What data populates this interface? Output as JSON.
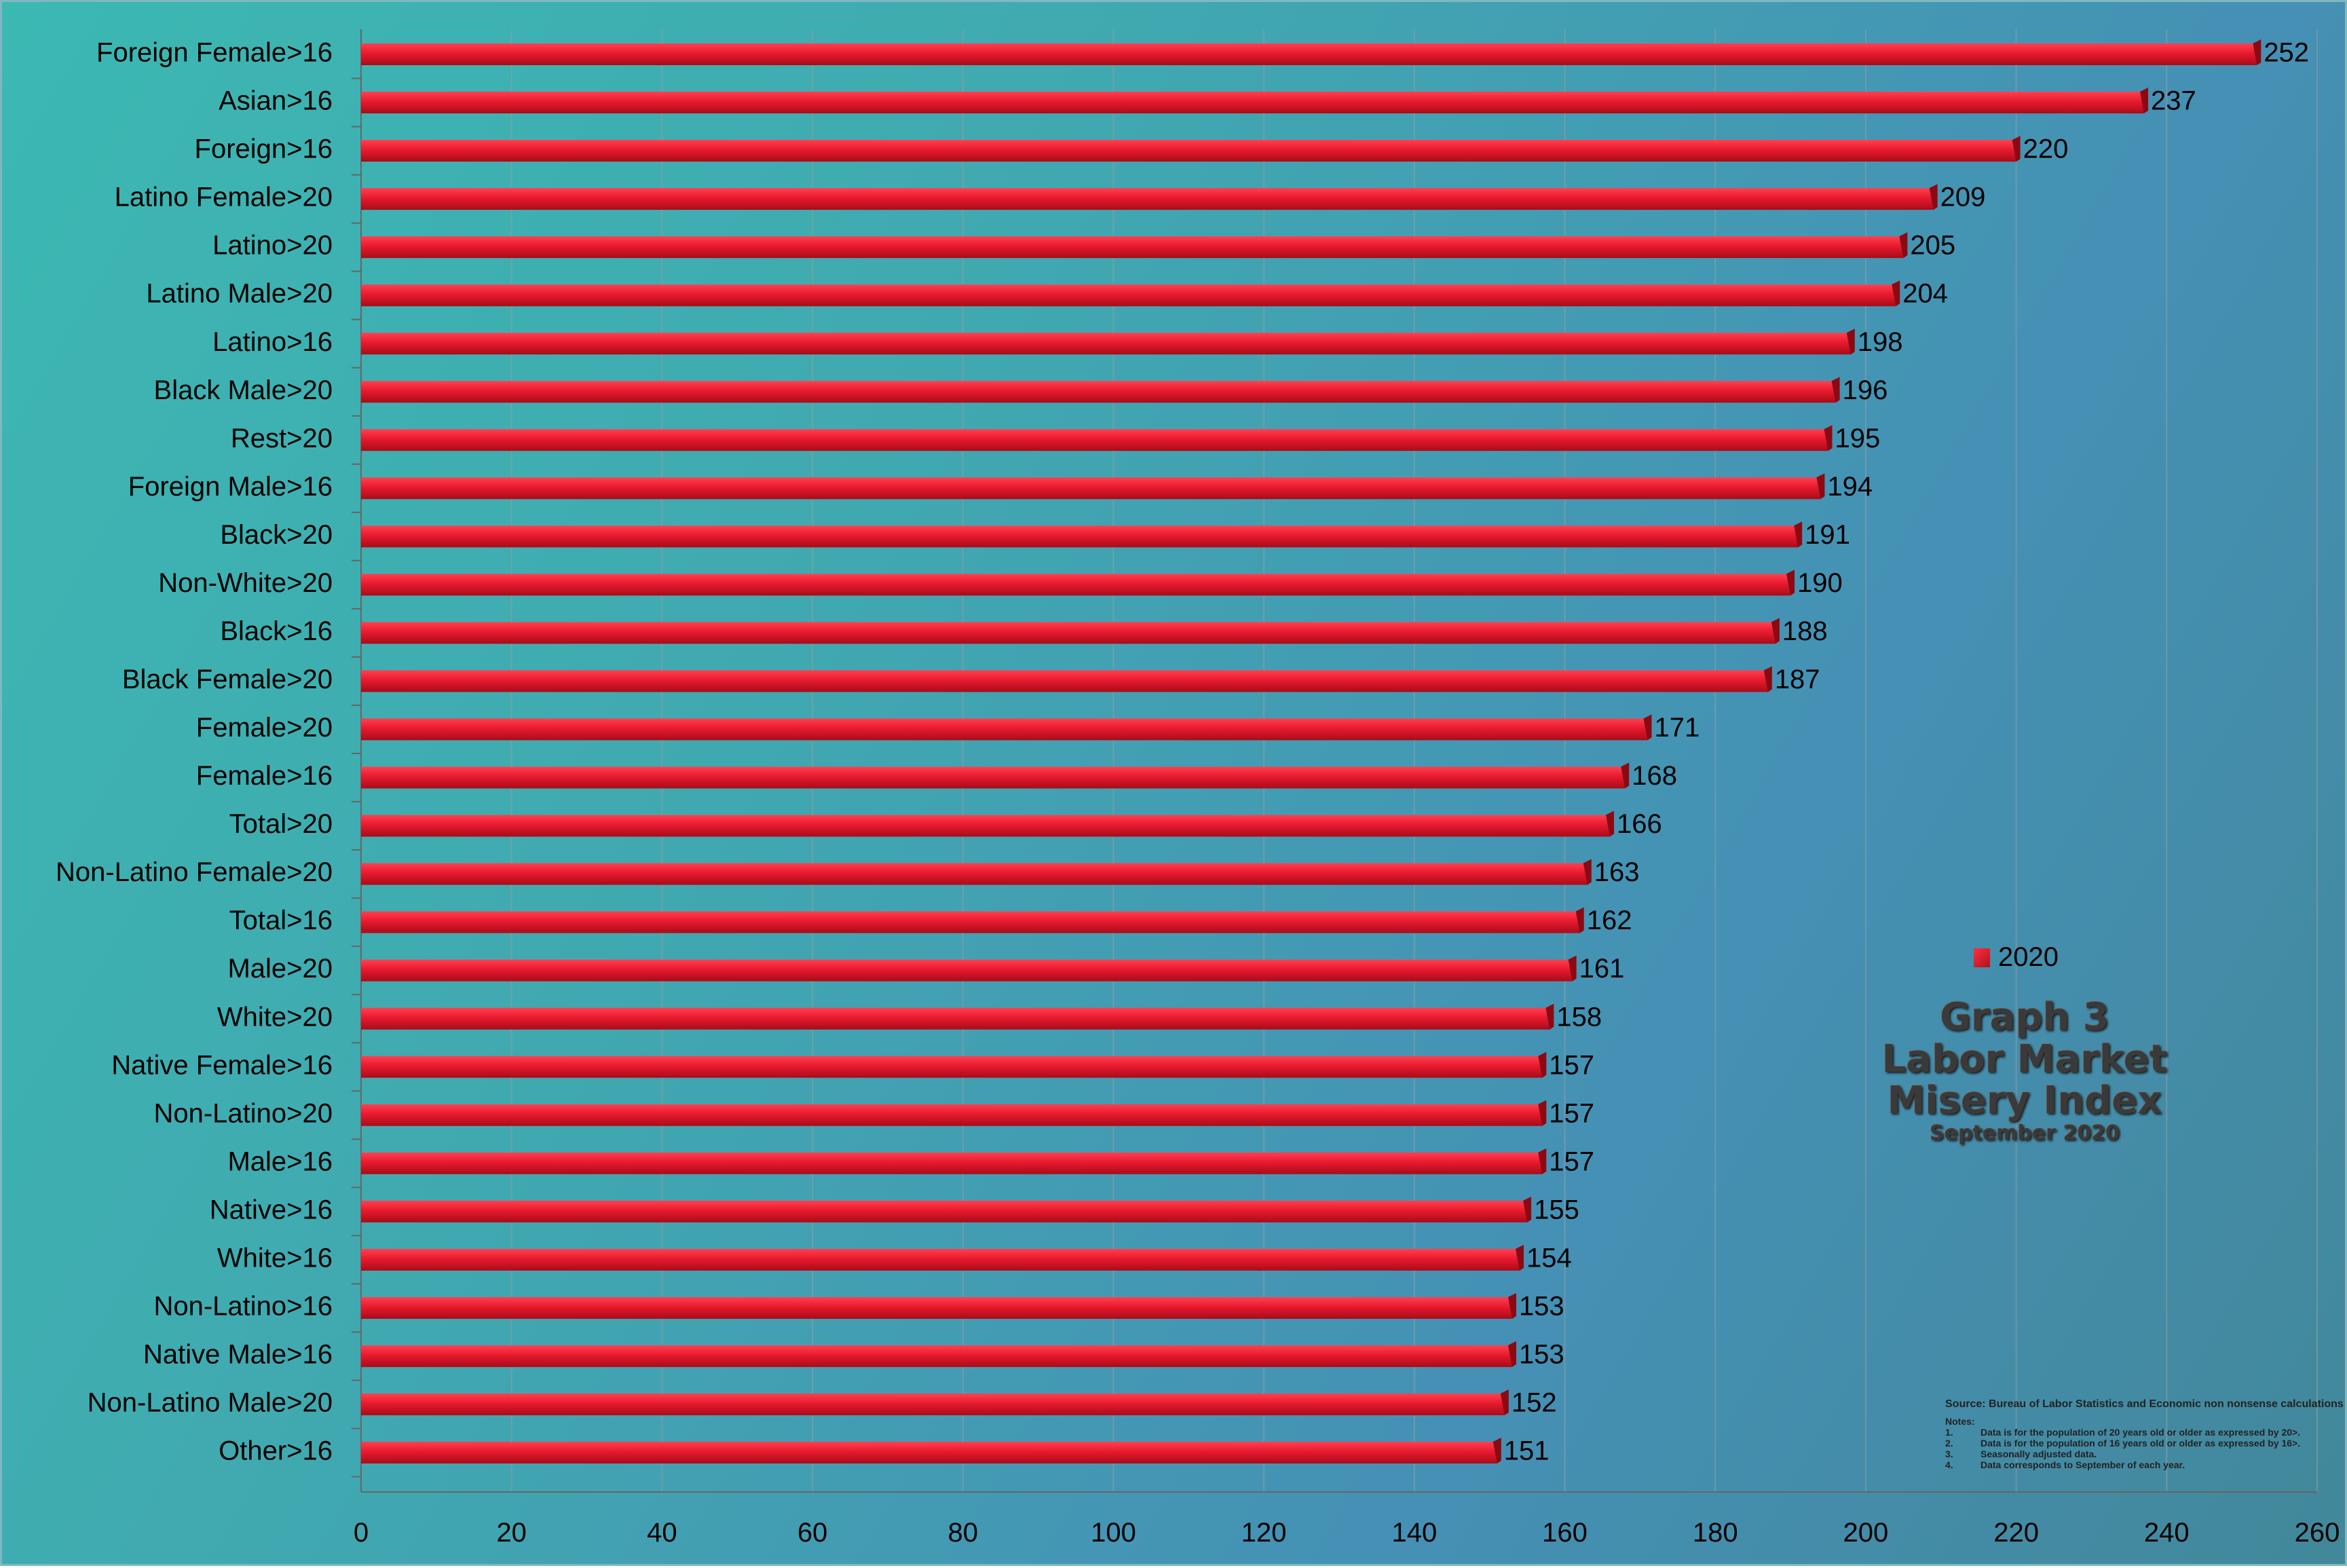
{
  "chart_data": {
    "type": "bar",
    "orientation": "horizontal",
    "categories": [
      "Foreign Female>16",
      "Asian>16",
      "Foreign>16",
      "Latino Female>20",
      "Latino>20",
      "Latino Male>20",
      "Latino>16",
      "Black Male>20",
      "Rest>20",
      "Foreign Male>16",
      "Black>20",
      "Non-White>20",
      "Black>16",
      "Black Female>20",
      "Female>20",
      "Female>16",
      "Total>20",
      "Non-Latino Female>20",
      "Total>16",
      "Male>20",
      "White>20",
      "Native Female>16",
      "Non-Latino>20",
      "Male>16",
      "Native>16",
      "White>16",
      "Non-Latino>16",
      "Native Male>16",
      "Non-Latino Male>20",
      "Other>16"
    ],
    "series": [
      {
        "name": "2020",
        "values": [
          252,
          237,
          220,
          209,
          205,
          204,
          198,
          196,
          195,
          194,
          191,
          190,
          188,
          187,
          171,
          168,
          166,
          163,
          162,
          161,
          158,
          157,
          157,
          157,
          155,
          154,
          153,
          153,
          152,
          151
        ],
        "color": "#e0182c"
      }
    ],
    "xlim": [
      0,
      260
    ],
    "xticks": [
      0,
      20,
      40,
      60,
      80,
      100,
      120,
      140,
      160,
      180,
      200,
      220,
      240,
      260
    ],
    "grid": "vertical",
    "legend": "right",
    "title": "Graph 3",
    "title_lines": [
      "Graph 3",
      "Labor Market",
      "Misery Index"
    ],
    "subtitle": "September 2020"
  },
  "source": "Source: Bureau of Labor Statistics and Economic non nonsense calculations",
  "notes_heading": "Notes:",
  "notes": [
    {
      "num": "1.",
      "text": "Data is for the population of  20 years old or older as expressed by 20>."
    },
    {
      "num": "2.",
      "text": "Data is for the population of 16 years old or older as expressed by 16>."
    },
    {
      "num": "3.",
      "text": "Seasonally adjusted data."
    },
    {
      "num": "4.",
      "text": "Data corresponds to September of each year."
    }
  ]
}
